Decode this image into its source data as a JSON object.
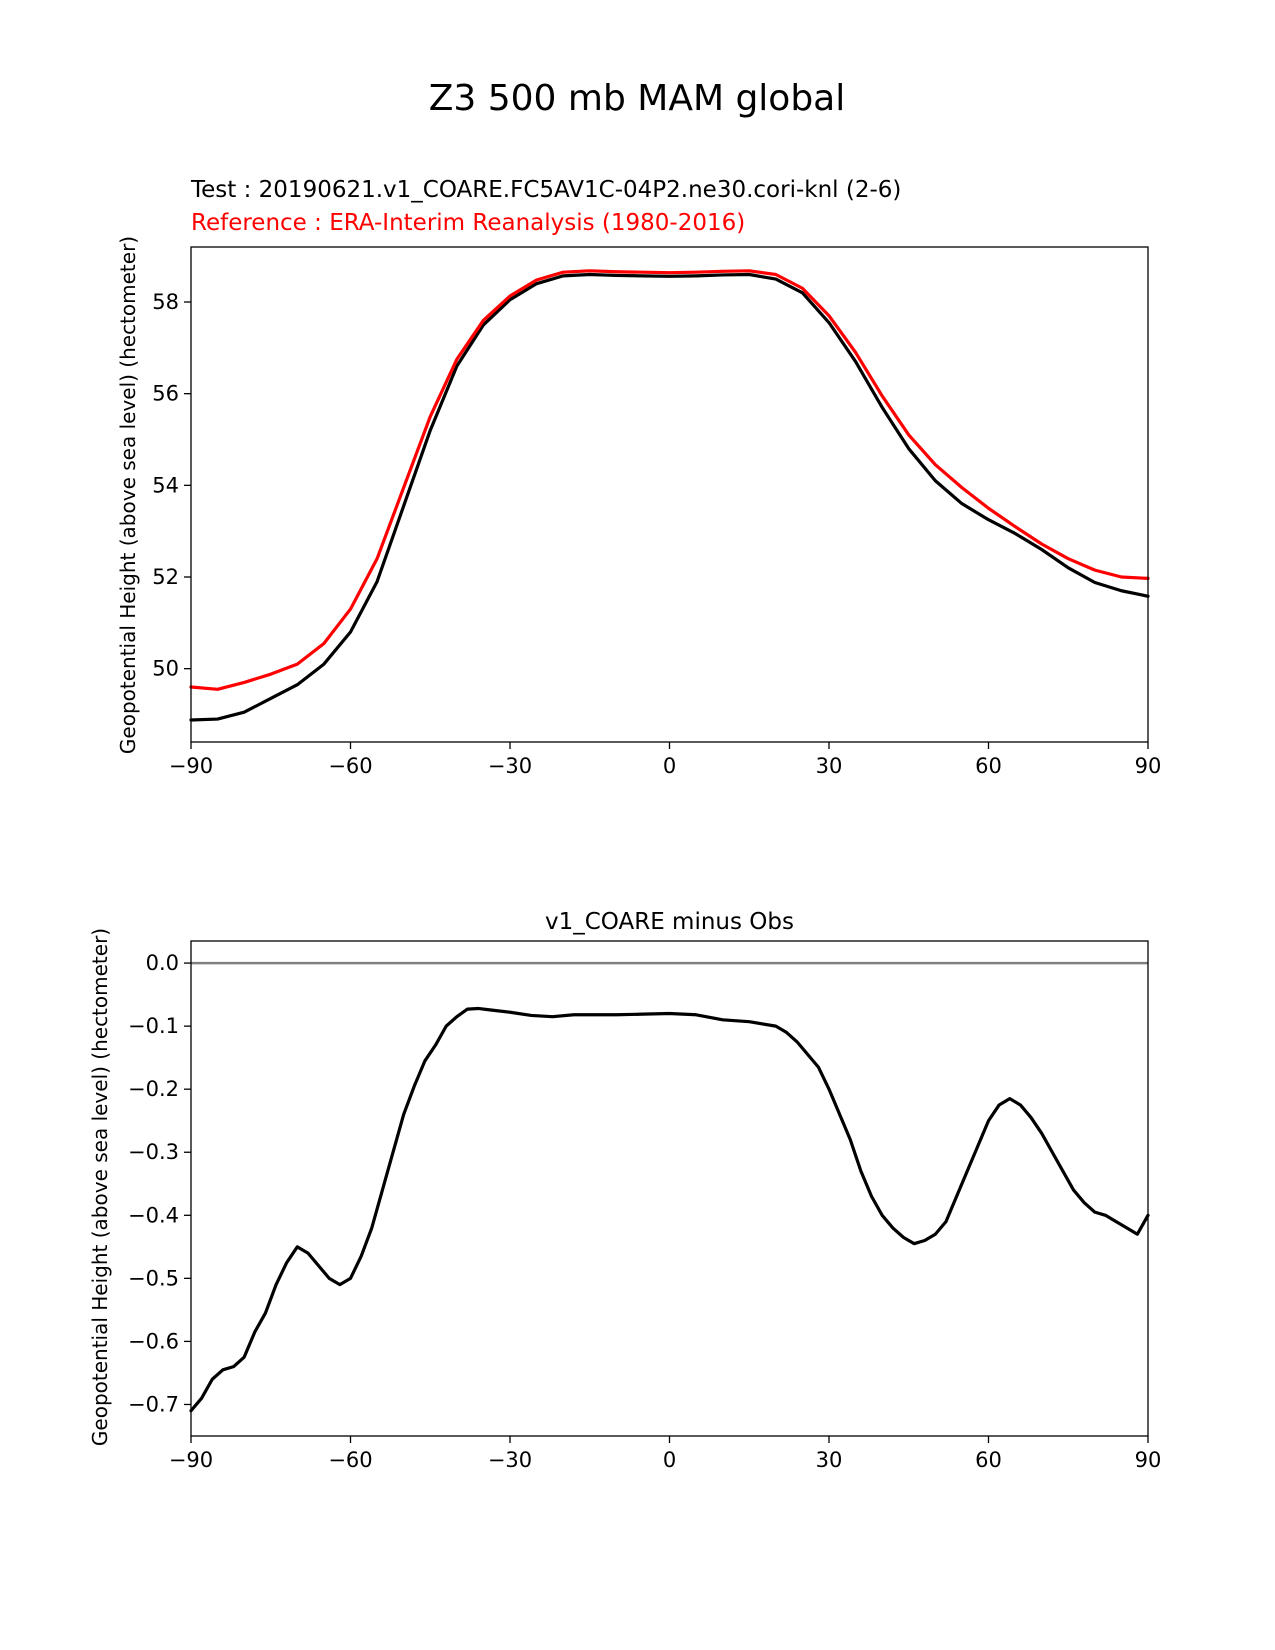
{
  "figure_title": "Z3 500 mb MAM global",
  "colors": {
    "test": "#000000",
    "reference": "#ff0000",
    "zero_line": "#808080"
  },
  "chart_data": [
    {
      "type": "line",
      "title_test": "Test : 20190621.v1_COARE.FC5AV1C-04P2.ne30.cori-knl (2-6)",
      "title_reference": "Reference : ERA-Interim Reanalysis (1980-2016)",
      "xlabel": "",
      "ylabel": "Geopotential Height (above sea level) (hectometer)",
      "xlim": [
        -90,
        90
      ],
      "ylim": [
        48.4,
        59.2
      ],
      "xticks": [
        -90,
        -60,
        -30,
        0,
        30,
        60,
        90
      ],
      "xtick_labels": [
        "−90",
        "−60",
        "−30",
        "0",
        "30",
        "60",
        "90"
      ],
      "yticks": [
        50,
        52,
        54,
        56,
        58
      ],
      "ytick_labels": [
        "50",
        "52",
        "54",
        "56",
        "58"
      ],
      "series": [
        {
          "name": "Test",
          "color": "#000000",
          "x": [
            -90,
            -85,
            -80,
            -75,
            -70,
            -65,
            -60,
            -55,
            -50,
            -45,
            -40,
            -35,
            -30,
            -25,
            -20,
            -15,
            -10,
            -5,
            0,
            5,
            10,
            15,
            20,
            25,
            30,
            35,
            40,
            45,
            50,
            55,
            60,
            65,
            70,
            75,
            80,
            85,
            90
          ],
          "y": [
            48.88,
            48.9,
            49.05,
            49.35,
            49.65,
            50.1,
            50.8,
            51.9,
            53.55,
            55.2,
            56.6,
            57.5,
            58.05,
            58.4,
            58.57,
            58.6,
            58.58,
            58.57,
            58.56,
            58.57,
            58.59,
            58.6,
            58.5,
            58.2,
            57.55,
            56.7,
            55.7,
            54.8,
            54.1,
            53.6,
            53.25,
            52.95,
            52.6,
            52.2,
            51.88,
            51.7,
            51.58
          ]
        },
        {
          "name": "Reference",
          "color": "#ff0000",
          "x": [
            -90,
            -85,
            -80,
            -75,
            -70,
            -65,
            -60,
            -55,
            -50,
            -45,
            -40,
            -35,
            -30,
            -25,
            -20,
            -15,
            -10,
            -5,
            0,
            5,
            10,
            15,
            20,
            25,
            30,
            35,
            40,
            45,
            50,
            55,
            60,
            65,
            70,
            75,
            80,
            85,
            90
          ],
          "y": [
            49.6,
            49.55,
            49.7,
            49.88,
            50.1,
            50.55,
            51.3,
            52.4,
            53.95,
            55.5,
            56.75,
            57.6,
            58.13,
            58.48,
            58.65,
            58.68,
            58.66,
            58.65,
            58.64,
            58.65,
            58.67,
            58.68,
            58.6,
            58.3,
            57.7,
            56.9,
            55.95,
            55.1,
            54.45,
            53.95,
            53.5,
            53.1,
            52.72,
            52.4,
            52.15,
            52.0,
            51.97
          ]
        }
      ]
    },
    {
      "type": "line",
      "title": "v1_COARE minus Obs",
      "xlabel": "",
      "ylabel": "Geopotential Height (above sea level) (hectometer)",
      "xlim": [
        -90,
        90
      ],
      "ylim": [
        -0.75,
        0.035
      ],
      "xticks": [
        -90,
        -60,
        -30,
        0,
        30,
        60,
        90
      ],
      "xtick_labels": [
        "−90",
        "−60",
        "−30",
        "0",
        "30",
        "60",
        "90"
      ],
      "yticks": [
        0.0,
        -0.1,
        -0.2,
        -0.3,
        -0.4,
        -0.5,
        -0.6,
        -0.7
      ],
      "ytick_labels": [
        "0.0",
        "−0.1",
        "−0.2",
        "−0.3",
        "−0.4",
        "−0.5",
        "−0.6",
        "−0.7"
      ],
      "zero_line": 0.0,
      "series": [
        {
          "name": "v1_COARE minus Obs",
          "color": "#000000",
          "x": [
            -90,
            -88,
            -86,
            -84,
            -82,
            -80,
            -78,
            -76,
            -74,
            -72,
            -70,
            -68,
            -66,
            -64,
            -62,
            -60,
            -58,
            -56,
            -54,
            -52,
            -50,
            -48,
            -46,
            -44,
            -42,
            -40,
            -38,
            -36,
            -34,
            -30,
            -26,
            -22,
            -18,
            -14,
            -10,
            -5,
            0,
            5,
            10,
            15,
            20,
            22,
            24,
            26,
            28,
            30,
            32,
            34,
            36,
            38,
            40,
            42,
            44,
            46,
            48,
            50,
            52,
            54,
            56,
            58,
            60,
            62,
            64,
            66,
            68,
            70,
            72,
            74,
            76,
            78,
            80,
            82,
            84,
            86,
            88,
            90
          ],
          "y": [
            -0.71,
            -0.69,
            -0.66,
            -0.645,
            -0.64,
            -0.625,
            -0.585,
            -0.555,
            -0.51,
            -0.475,
            -0.45,
            -0.46,
            -0.48,
            -0.5,
            -0.51,
            -0.5,
            -0.465,
            -0.42,
            -0.36,
            -0.3,
            -0.24,
            -0.195,
            -0.155,
            -0.13,
            -0.1,
            -0.085,
            -0.073,
            -0.072,
            -0.074,
            -0.078,
            -0.083,
            -0.085,
            -0.082,
            -0.082,
            -0.082,
            -0.081,
            -0.08,
            -0.082,
            -0.09,
            -0.093,
            -0.1,
            -0.11,
            -0.125,
            -0.145,
            -0.165,
            -0.2,
            -0.24,
            -0.28,
            -0.33,
            -0.37,
            -0.4,
            -0.42,
            -0.435,
            -0.445,
            -0.44,
            -0.43,
            -0.41,
            -0.37,
            -0.33,
            -0.29,
            -0.25,
            -0.225,
            -0.215,
            -0.225,
            -0.245,
            -0.27,
            -0.3,
            -0.33,
            -0.36,
            -0.38,
            -0.395,
            -0.4,
            -0.41,
            -0.42,
            -0.43,
            -0.4
          ]
        }
      ]
    }
  ]
}
